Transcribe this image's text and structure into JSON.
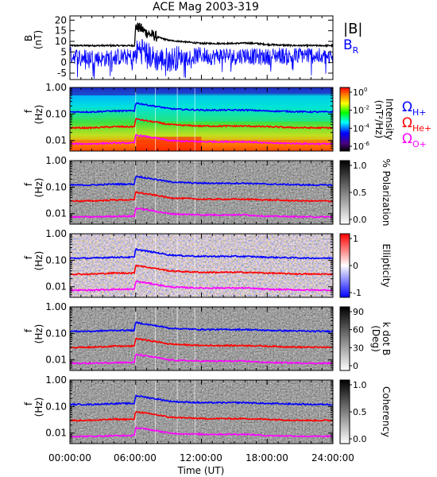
{
  "chart_data": [
    {
      "type": "line",
      "title": "ACE Mag 2003-319",
      "ylabel": "B",
      "yunit": "(nT)",
      "ylim": [
        -8,
        22
      ],
      "yticks": [
        -5,
        0,
        5,
        10,
        15,
        20
      ],
      "xlim": [
        "00:00:00",
        "24:00:00"
      ],
      "series": [
        {
          "name": "|B|",
          "color": "#000000",
          "x": [
            0,
            1,
            2,
            3,
            4,
            5,
            5.9,
            6.0,
            6.5,
            7,
            7.5,
            8,
            9,
            10,
            11,
            12,
            13,
            14,
            15,
            16,
            17,
            18,
            19,
            20,
            21,
            22,
            23,
            24
          ],
          "values": [
            8,
            8,
            8,
            8,
            8,
            8,
            8,
            17,
            16,
            14,
            13,
            12,
            10.5,
            10,
            9.5,
            9,
            9,
            9,
            9,
            9.2,
            9,
            8.5,
            8.3,
            8.1,
            8,
            8,
            8,
            8
          ]
        },
        {
          "name": "B_R",
          "label_main": "B",
          "label_sub": "R",
          "color": "#0000ff",
          "x": [
            0,
            1,
            2,
            3,
            4,
            5,
            5.9,
            6.0,
            6.5,
            7,
            7.5,
            8,
            9,
            10,
            11,
            12,
            13,
            14,
            15,
            16,
            17,
            18,
            19,
            20,
            21,
            22,
            23,
            24
          ],
          "values": [
            4,
            3,
            3,
            2,
            3,
            3,
            3,
            5,
            8,
            5,
            3,
            2,
            2,
            3,
            3,
            4,
            3,
            4,
            3,
            4,
            3,
            3,
            4,
            3,
            4,
            4,
            3,
            3
          ]
        }
      ]
    },
    {
      "type": "heatmap",
      "ylabel": "f",
      "yunit": "(Hz)",
      "yscale": "log",
      "ylim": [
        0.004,
        1.0
      ],
      "yticks": [
        "1.00",
        "0.10",
        "0.01"
      ],
      "colorbar": {
        "label": "Intensity",
        "label2": "(nT²/Hz)",
        "scale": "log",
        "ticks": [
          {
            "base": "10",
            "exp": "0"
          },
          {
            "base": "10",
            "exp": "-2"
          },
          {
            "base": "10",
            "exp": "-4"
          },
          {
            "base": "10",
            "exp": "-6"
          }
        ]
      },
      "legend": [
        {
          "main": "Ω",
          "sub": "H+",
          "color": "#0000ff"
        },
        {
          "main": "Ω",
          "sub": "He+",
          "color": "#ff0000"
        },
        {
          "main": "Ω",
          "sub": "O+",
          "color": "#ff00ff"
        }
      ]
    },
    {
      "type": "heatmap",
      "ylabel": "f",
      "yunit": "(Hz)",
      "yscale": "log",
      "yticks": [
        "1.00",
        "0.10",
        "0.01"
      ],
      "colorbar": {
        "label": "% Polarization",
        "ticks": [
          "1.0",
          "0.5",
          "0.0"
        ]
      }
    },
    {
      "type": "heatmap",
      "ylabel": "f",
      "yunit": "(Hz)",
      "yscale": "log",
      "yticks": [
        "1.00",
        "0.10",
        "0.01"
      ],
      "colorbar": {
        "label": "Ellipticity",
        "ticks": [
          "1",
          "0",
          "-1"
        ]
      }
    },
    {
      "type": "heatmap",
      "ylabel": "f",
      "yunit": "(Hz)",
      "yscale": "log",
      "yticks": [
        "1.00",
        "0.10",
        "0.01"
      ],
      "colorbar": {
        "label": "k dot B",
        "label2": "(Deg)",
        "ticks": [
          "90",
          "60",
          "30",
          "0"
        ]
      }
    },
    {
      "type": "heatmap",
      "ylabel": "f",
      "yunit": "(Hz)",
      "yscale": "log",
      "yticks": [
        "1.00",
        "0.10",
        "0.01"
      ],
      "colorbar": {
        "label": "Coherency",
        "ticks": [
          "1.0",
          "0.5",
          "0.0"
        ]
      }
    }
  ],
  "gyro_lines": {
    "x_hours": [
      0,
      2,
      4,
      5.9,
      6.0,
      7,
      8,
      9,
      10,
      12,
      14,
      16,
      18,
      20,
      22,
      24
    ],
    "H+": [
      0.12,
      0.12,
      0.13,
      0.13,
      0.26,
      0.22,
      0.19,
      0.16,
      0.15,
      0.14,
      0.14,
      0.14,
      0.13,
      0.125,
      0.12,
      0.12
    ],
    "He+": [
      0.03,
      0.03,
      0.033,
      0.033,
      0.065,
      0.055,
      0.048,
      0.04,
      0.038,
      0.035,
      0.035,
      0.035,
      0.033,
      0.031,
      0.03,
      0.03
    ],
    "O+": [
      0.0075,
      0.0075,
      0.008,
      0.008,
      0.016,
      0.014,
      0.012,
      0.01,
      0.0095,
      0.009,
      0.009,
      0.009,
      0.008,
      0.0078,
      0.0075,
      0.0075
    ],
    "colors": {
      "H+": "#0000ff",
      "He+": "#ff0000",
      "O+": "#ff00ff"
    }
  },
  "x_axis": {
    "ticks": [
      "00:00:00",
      "06:00:00",
      "12:00:00",
      "18:00:00",
      "24:00:00"
    ],
    "label": "Time (UT)"
  }
}
